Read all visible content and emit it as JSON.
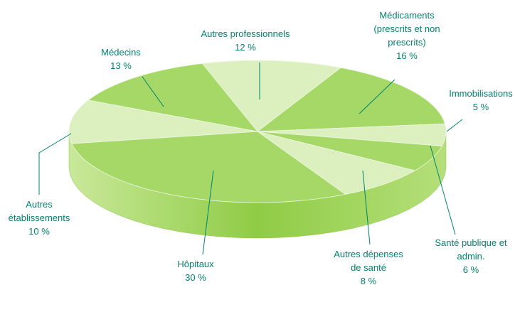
{
  "chart_data": {
    "type": "pie",
    "categories": [
      "Autres professionnels",
      "Médicaments (prescrits et non prescrits)",
      "Immobilisations",
      "Santé publique et admin.",
      "Autres dépenses de santé",
      "Hôpitaux",
      "Autres établissements",
      "Médecins"
    ],
    "values": [
      12,
      16,
      5,
      6,
      8,
      30,
      10,
      13
    ],
    "value_labels": [
      "12 %",
      "16 %",
      "5 %",
      "6 %",
      "8 %",
      "30 %",
      "10 %",
      "13 %"
    ],
    "colors": [
      "#dcefbf",
      "#a6d868",
      "#dcefbf",
      "#a6d868",
      "#dcefbf",
      "#a6d868",
      "#dcefbf",
      "#a6d868"
    ]
  }
}
